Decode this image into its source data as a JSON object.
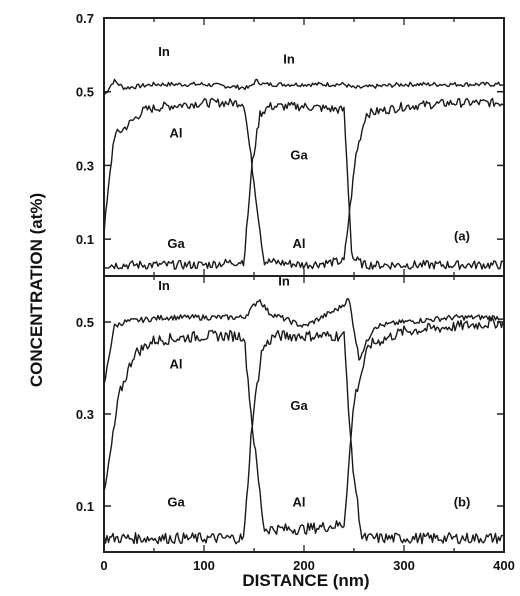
{
  "chart_data": {
    "type": "line",
    "xlabel": "DISTANCE (nm)",
    "ylabel": "CONCENTRATION (at%)",
    "xlim": [
      0,
      400
    ],
    "x_ticks": [
      "0",
      "100",
      "200",
      "300",
      "400"
    ],
    "panels": [
      {
        "label": "(a)",
        "ylim": [
          0.0,
          0.7
        ],
        "y_ticks": [
          "0.1",
          "0.3",
          "0.5",
          "0.7"
        ],
        "y_tick_values": [
          0.1,
          0.3,
          0.5,
          0.7
        ],
        "annotations": [
          {
            "text": "In",
            "x": 60,
            "y": 0.61
          },
          {
            "text": "In",
            "x": 185,
            "y": 0.59
          },
          {
            "text": "Al",
            "x": 72,
            "y": 0.39
          },
          {
            "text": "Ga",
            "x": 195,
            "y": 0.33
          },
          {
            "text": "Ga",
            "x": 72,
            "y": 0.09
          },
          {
            "text": "Al",
            "x": 195,
            "y": 0.09
          },
          {
            "text": "(a)",
            "x": 358,
            "y": 0.11
          }
        ],
        "series": [
          {
            "name": "In",
            "x": [
              0,
              10,
              20,
              50,
              100,
              145,
              152,
              160,
              200,
              240,
              250,
              300,
              350,
              400
            ],
            "y": [
              0.49,
              0.53,
              0.51,
              0.52,
              0.52,
              0.51,
              0.53,
              0.52,
              0.52,
              0.52,
              0.51,
              0.52,
              0.52,
              0.52
            ]
          },
          {
            "name": "Al",
            "x": [
              0,
              10,
              20,
              40,
              60,
              100,
              140,
              148,
              160,
              200,
              240,
              252,
              262,
              300,
              350,
              400
            ],
            "y": [
              0.12,
              0.38,
              0.4,
              0.45,
              0.46,
              0.47,
              0.47,
              0.3,
              0.04,
              0.03,
              0.04,
              0.33,
              0.44,
              0.46,
              0.47,
              0.47
            ]
          },
          {
            "name": "Ga",
            "x": [
              0,
              20,
              50,
              100,
              140,
              148,
              156,
              165,
              200,
              240,
              248,
              260,
              300,
              350,
              400
            ],
            "y": [
              0.03,
              0.03,
              0.03,
              0.03,
              0.04,
              0.3,
              0.44,
              0.46,
              0.46,
              0.45,
              0.05,
              0.03,
              0.03,
              0.03,
              0.03
            ]
          }
        ]
      },
      {
        "label": "(b)",
        "ylim": [
          0.0,
          0.6
        ],
        "y_ticks": [
          "0.1",
          "0.3",
          "0.5"
        ],
        "y_tick_values": [
          0.1,
          0.3,
          0.5
        ],
        "annotations": [
          {
            "text": "In",
            "x": 60,
            "y": 0.58
          },
          {
            "text": "In",
            "x": 180,
            "y": 0.59
          },
          {
            "text": "Al",
            "x": 72,
            "y": 0.41
          },
          {
            "text": "Ga",
            "x": 195,
            "y": 0.32
          },
          {
            "text": "Ga",
            "x": 72,
            "y": 0.11
          },
          {
            "text": "Al",
            "x": 195,
            "y": 0.11
          },
          {
            "text": "(b)",
            "x": 358,
            "y": 0.11
          }
        ],
        "series": [
          {
            "name": "In",
            "x": [
              0,
              10,
              20,
              60,
              100,
              140,
              148,
              155,
              165,
              200,
              235,
              245,
              255,
              270,
              300,
              350,
              400
            ],
            "y": [
              0.36,
              0.49,
              0.5,
              0.51,
              0.51,
              0.51,
              0.53,
              0.55,
              0.52,
              0.49,
              0.53,
              0.55,
              0.42,
              0.49,
              0.5,
              0.51,
              0.51
            ]
          },
          {
            "name": "Al",
            "x": [
              0,
              15,
              30,
              50,
              100,
              140,
              148,
              160,
              200,
              240,
              250,
              265,
              300,
              350,
              400
            ],
            "y": [
              0.12,
              0.34,
              0.43,
              0.46,
              0.47,
              0.47,
              0.28,
              0.05,
              0.05,
              0.06,
              0.33,
              0.45,
              0.48,
              0.49,
              0.5
            ]
          },
          {
            "name": "Ga",
            "x": [
              0,
              50,
              100,
              140,
              148,
              158,
              170,
              200,
              240,
              248,
              258,
              300,
              350,
              400
            ],
            "y": [
              0.03,
              0.03,
              0.03,
              0.03,
              0.28,
              0.44,
              0.47,
              0.47,
              0.47,
              0.2,
              0.03,
              0.03,
              0.03,
              0.03
            ]
          }
        ]
      }
    ]
  }
}
